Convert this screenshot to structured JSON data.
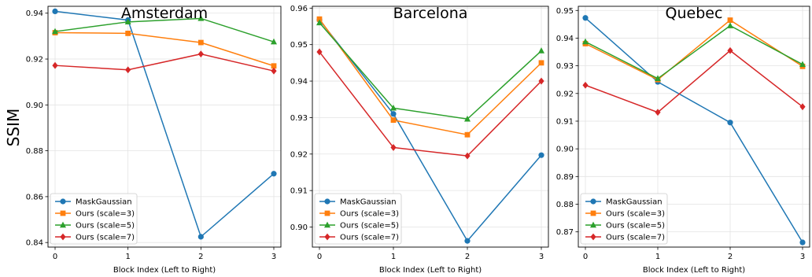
{
  "figure": {
    "ylabel": "SSIM",
    "xlabel": "Block Index (Left to Right)"
  },
  "chart_data": [
    {
      "type": "line",
      "title": "Amsterdam",
      "xlabel": "Block Index (Left to Right)",
      "ylabel": "SSIM",
      "x": [
        0,
        1,
        2,
        3
      ],
      "ylim": [
        0.838,
        0.943
      ],
      "yticks": [
        0.84,
        0.86,
        0.88,
        0.9,
        0.92,
        0.94
      ],
      "ytick_labels": [
        "0.84",
        "0.86",
        "0.88",
        "0.90",
        "0.92",
        "0.94"
      ],
      "grid": true,
      "legend_position": "lower-left",
      "series": [
        {
          "name": "MaskGaussian",
          "values": [
            0.9408,
            0.937,
            0.8425,
            0.87
          ],
          "color": "#1f77b4",
          "marker": "circle"
        },
        {
          "name": "Ours (scale=3)",
          "values": [
            0.9315,
            0.9312,
            0.9272,
            0.917
          ],
          "color": "#ff7f0e",
          "marker": "square"
        },
        {
          "name": "Ours (scale=5)",
          "values": [
            0.932,
            0.9362,
            0.9377,
            0.9275
          ],
          "color": "#2ca02c",
          "marker": "triangle"
        },
        {
          "name": "Ours (scale=7)",
          "values": [
            0.9172,
            0.9153,
            0.9222,
            0.9148
          ],
          "color": "#d62728",
          "marker": "diamond"
        }
      ]
    },
    {
      "type": "line",
      "title": "Barcelona",
      "xlabel": "Block Index (Left to Right)",
      "ylabel": "",
      "x": [
        0,
        1,
        2,
        3
      ],
      "ylim": [
        0.8945,
        0.9605
      ],
      "yticks": [
        0.9,
        0.91,
        0.92,
        0.93,
        0.94,
        0.95,
        0.96
      ],
      "ytick_labels": [
        "0.90",
        "0.91",
        "0.92",
        "0.93",
        "0.94",
        "0.95",
        "0.96"
      ],
      "grid": true,
      "legend_position": "lower-left",
      "series": [
        {
          "name": "MaskGaussian",
          "values": [
            0.9568,
            0.931,
            0.8962,
            0.9197
          ],
          "color": "#1f77b4",
          "marker": "circle"
        },
        {
          "name": "Ours (scale=3)",
          "values": [
            0.957,
            0.9293,
            0.9253,
            0.945
          ],
          "color": "#ff7f0e",
          "marker": "square"
        },
        {
          "name": "Ours (scale=5)",
          "values": [
            0.956,
            0.9326,
            0.9296,
            0.9483
          ],
          "color": "#2ca02c",
          "marker": "triangle"
        },
        {
          "name": "Ours (scale=7)",
          "values": [
            0.948,
            0.9218,
            0.9195,
            0.94
          ],
          "color": "#d62728",
          "marker": "diamond"
        }
      ]
    },
    {
      "type": "line",
      "title": "Quebec",
      "xlabel": "Block Index (Left to Right)",
      "ylabel": "",
      "x": [
        0,
        1,
        2,
        3
      ],
      "ylim": [
        0.8645,
        0.9515
      ],
      "yticks": [
        0.87,
        0.88,
        0.89,
        0.9,
        0.91,
        0.92,
        0.93,
        0.94,
        0.95
      ],
      "ytick_labels": [
        "0.87",
        "0.88",
        "0.89",
        "0.90",
        "0.91",
        "0.92",
        "0.93",
        "0.94",
        "0.95"
      ],
      "grid": true,
      "legend_position": "lower-left",
      "series": [
        {
          "name": "MaskGaussian",
          "values": [
            0.9473,
            0.9242,
            0.9095,
            0.8662
          ],
          "color": "#1f77b4",
          "marker": "circle"
        },
        {
          "name": "Ours (scale=3)",
          "values": [
            0.938,
            0.925,
            0.9465,
            0.9298
          ],
          "color": "#ff7f0e",
          "marker": "square"
        },
        {
          "name": "Ours (scale=5)",
          "values": [
            0.9387,
            0.9254,
            0.9445,
            0.9305
          ],
          "color": "#2ca02c",
          "marker": "triangle"
        },
        {
          "name": "Ours (scale=7)",
          "values": [
            0.923,
            0.9132,
            0.9355,
            0.9152
          ],
          "color": "#d62728",
          "marker": "diamond"
        }
      ]
    }
  ]
}
